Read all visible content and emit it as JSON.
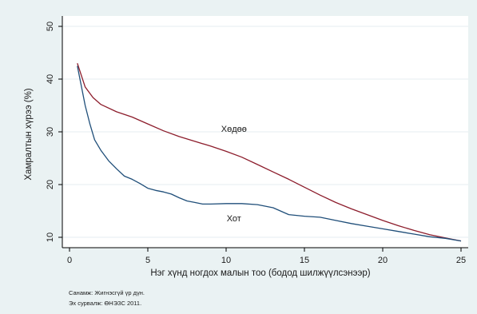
{
  "chart_data": {
    "type": "line",
    "xlabel": "Нэг хүнд ногдох малын тоо (бодод шилжүүлсэнээр)",
    "ylabel": "Хамралтын хүрээ (%)",
    "xlim": [
      0,
      25
    ],
    "ylim": [
      10,
      50
    ],
    "xticks": [
      0,
      5,
      10,
      15,
      20,
      25
    ],
    "yticks": [
      10,
      20,
      30,
      40,
      50
    ],
    "grid": "horizontal",
    "series": [
      {
        "name": "Хөдөө",
        "color": "#8c1c2b",
        "x": [
          0.5,
          1,
          1.5,
          2,
          3,
          4,
          5,
          6,
          7,
          8,
          9,
          10,
          11,
          12,
          13,
          14,
          15,
          16,
          17,
          18,
          19,
          20,
          21,
          22,
          23,
          24,
          25
        ],
        "y": [
          43,
          38.5,
          36.5,
          35.2,
          33.8,
          32.8,
          31.5,
          30.2,
          29.1,
          28.2,
          27.3,
          26.3,
          25.2,
          23.8,
          22.4,
          21.0,
          19.5,
          18.0,
          16.6,
          15.4,
          14.3,
          13.2,
          12.2,
          11.3,
          10.5,
          9.9,
          9.3
        ]
      },
      {
        "name": "Хот",
        "color": "#1f4e79",
        "x": [
          0.5,
          0.8,
          1.0,
          1.3,
          1.6,
          2.0,
          2.5,
          3.0,
          3.5,
          4.0,
          4.5,
          5.0,
          5.5,
          6.0,
          6.5,
          7.0,
          7.5,
          8.0,
          8.5,
          9.0,
          10.0,
          11.0,
          12.0,
          13.0,
          14.0,
          15.0,
          16.0,
          17.0,
          18.0,
          19.0,
          20.0,
          21.0,
          22.0,
          23.0,
          24.0,
          25.0
        ],
        "y": [
          42.5,
          38.0,
          35.0,
          31.5,
          28.5,
          26.5,
          24.5,
          23.0,
          21.6,
          21.0,
          20.2,
          19.3,
          18.9,
          18.6,
          18.2,
          17.5,
          16.9,
          16.6,
          16.3,
          16.3,
          16.4,
          16.4,
          16.2,
          15.6,
          14.3,
          14.0,
          13.8,
          13.2,
          12.6,
          12.1,
          11.6,
          11.1,
          10.6,
          10.1,
          9.8,
          9.3
        ]
      }
    ],
    "annotations": [
      {
        "text": "Хөдөө",
        "x": 10.5,
        "y": 30
      },
      {
        "text": "Хот",
        "x": 10.5,
        "y": 13
      }
    ]
  },
  "notes": {
    "line1": "Санамж: Жигнэсгүй үр дүн.",
    "line2": "Эх сурвалж: ӨНЭЗС 2011."
  }
}
